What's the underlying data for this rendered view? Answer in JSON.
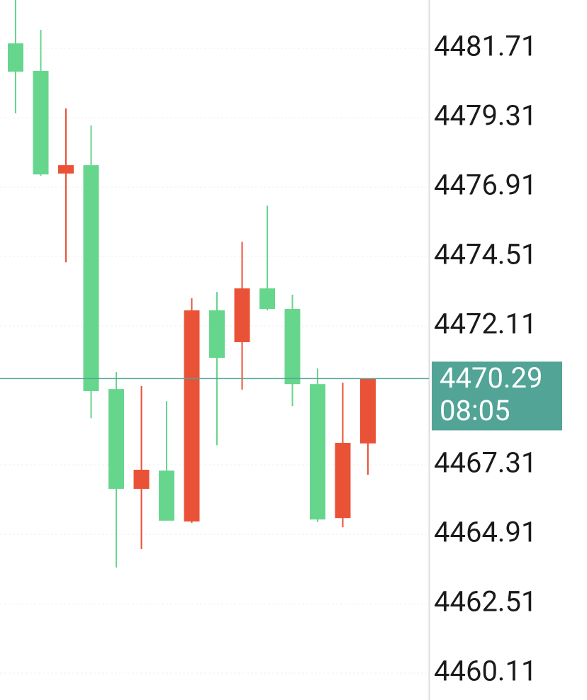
{
  "chart_data": {
    "type": "candlestick",
    "categories": [
      null,
      null,
      null,
      null,
      null,
      null,
      null,
      null,
      null,
      null,
      null,
      null,
      null,
      null,
      null
    ],
    "open": [
      4480.9,
      4477.35,
      4477.67,
      4469.86,
      4466.48,
      4467.14,
      4465.38,
      4472.65,
      4471.01,
      4473.41,
      4472.7,
      4470.1,
      4465.42,
      4468.07,
      4470.29
    ],
    "high": [
      4483.38,
      4482.35,
      4479.63,
      4479.04,
      4470.52,
      4470.03,
      4469.51,
      4473.07,
      4473.29,
      4475.02,
      4476.27,
      4473.19,
      4470.64,
      4470.15,
      4470.29
    ],
    "low": [
      4479.46,
      4477.3,
      4474.31,
      4468.92,
      4463.76,
      4464.4,
      4465.38,
      4465.3,
      4467.99,
      4469.91,
      4472.65,
      4469.34,
      4465.33,
      4465.15,
      4466.97
    ],
    "close": [
      4481.88,
      4480.93,
      4477.38,
      4477.67,
      4469.93,
      4466.48,
      4467.11,
      4465.35,
      4472.65,
      4471.55,
      4473.41,
      4472.7,
      4470.1,
      4465.47,
      4468.05
    ],
    "up_color": "#66d68d",
    "down_color": "#ea5237",
    "ylim": [
      4459.18,
      4483.38
    ],
    "yticks": [
      4460.11,
      4462.51,
      4464.91,
      4467.31,
      4472.11,
      4474.51,
      4476.91,
      4479.31,
      4481.71
    ],
    "grid": true,
    "current_price": 4470.29,
    "current_time": "08:05",
    "current_color": "#52a497"
  }
}
